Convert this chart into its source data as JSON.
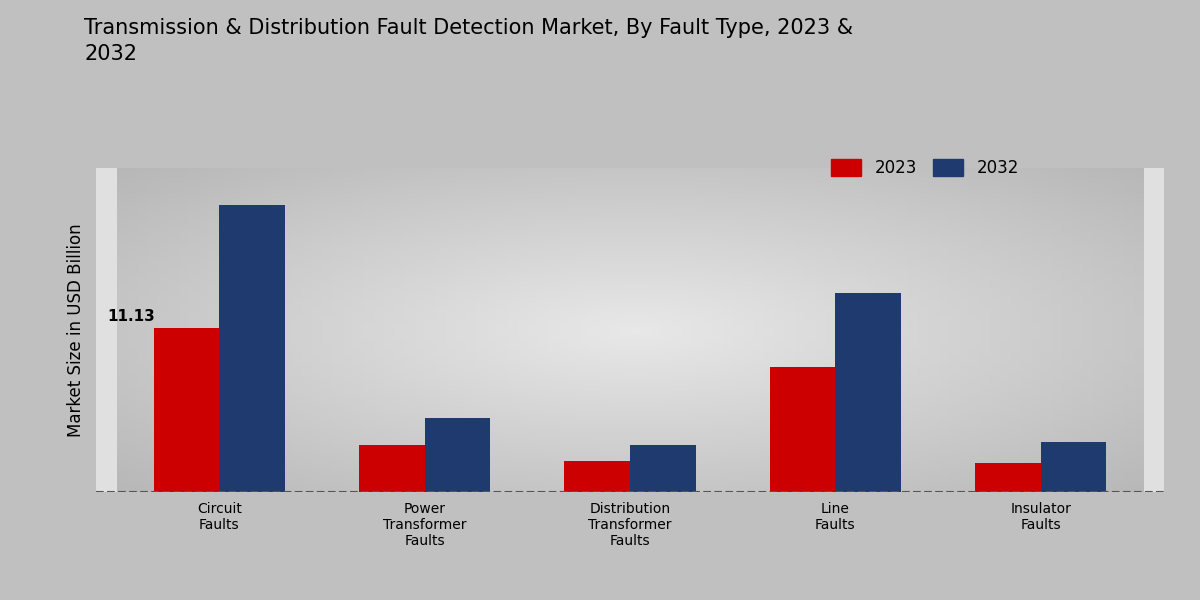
{
  "title": "Transmission & Distribution Fault Detection Market, By Fault Type, 2023 &\n2032",
  "ylabel": "Market Size in USD Billion",
  "categories": [
    "Circuit\nFaults",
    "Power\nTransformer\nFaults",
    "Distribution\nTransformer\nFaults",
    "Line\nFaults",
    "Insulator\nFaults"
  ],
  "values_2023": [
    11.13,
    3.2,
    2.1,
    8.5,
    2.0
  ],
  "values_2032": [
    19.5,
    5.0,
    3.2,
    13.5,
    3.4
  ],
  "annotation_2023_circuit": "11.13",
  "color_2023": "#cc0000",
  "color_2032": "#1e3a6e",
  "bg_outer": "#c8c8c8",
  "bg_inner": "#e8e8e8",
  "dashed_line_y": 0,
  "bar_width": 0.32,
  "legend_labels": [
    "2023",
    "2032"
  ],
  "title_fontsize": 15,
  "axis_label_fontsize": 12,
  "tick_fontsize": 10,
  "ylim_max": 22
}
